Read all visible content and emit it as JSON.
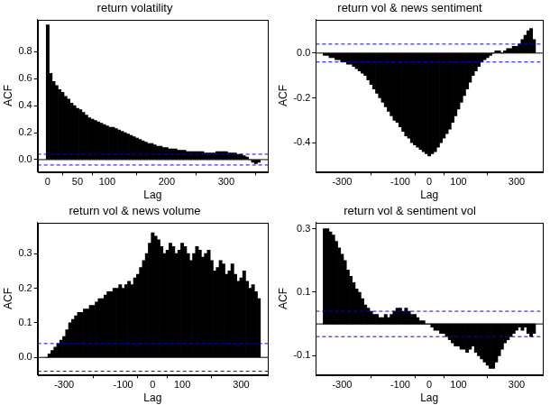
{
  "chart_data": [
    {
      "type": "bar",
      "title": "return volatility",
      "x_label": "Lag",
      "y_label": "ACF",
      "color": "#000000",
      "grid": false,
      "xlim": [
        -17,
        370
      ],
      "xticks": [
        0,
        50,
        100,
        200,
        300
      ],
      "ylim": [
        -0.09,
        1.04
      ],
      "yticks": [
        {
          "value": 0,
          "label": "0.0"
        },
        {
          "value": 0.2,
          "label": "0.2"
        },
        {
          "value": 0.4,
          "label": "0.4"
        },
        {
          "value": 0.6,
          "label": "0.6"
        },
        {
          "value": 0.8,
          "label": "0.8"
        }
      ],
      "confidence_bounds": [
        -0.04,
        0.04
      ],
      "x": [
        0,
        5,
        10,
        15,
        20,
        25,
        30,
        35,
        40,
        45,
        50,
        55,
        60,
        65,
        70,
        75,
        80,
        85,
        90,
        95,
        100,
        105,
        110,
        115,
        120,
        125,
        130,
        135,
        140,
        145,
        150,
        155,
        160,
        165,
        170,
        175,
        180,
        185,
        190,
        195,
        200,
        205,
        210,
        215,
        220,
        225,
        230,
        235,
        240,
        245,
        250,
        255,
        260,
        265,
        270,
        275,
        280,
        285,
        290,
        295,
        300,
        305,
        310,
        315,
        320,
        325,
        330,
        335,
        340,
        345,
        350,
        355
      ],
      "values": [
        1.0,
        0.64,
        0.58,
        0.55,
        0.52,
        0.5,
        0.47,
        0.45,
        0.42,
        0.4,
        0.38,
        0.37,
        0.35,
        0.33,
        0.31,
        0.3,
        0.29,
        0.28,
        0.27,
        0.26,
        0.25,
        0.24,
        0.24,
        0.23,
        0.22,
        0.21,
        0.2,
        0.19,
        0.18,
        0.17,
        0.16,
        0.15,
        0.14,
        0.13,
        0.12,
        0.12,
        0.11,
        0.1,
        0.1,
        0.09,
        0.09,
        0.08,
        0.08,
        0.08,
        0.07,
        0.07,
        0.07,
        0.06,
        0.06,
        0.06,
        0.06,
        0.06,
        0.06,
        0.05,
        0.05,
        0.05,
        0.05,
        0.06,
        0.06,
        0.06,
        0.06,
        0.05,
        0.05,
        0.05,
        0.04,
        0.04,
        0.03,
        0.02,
        0.0,
        -0.02,
        -0.03,
        -0.02
      ]
    },
    {
      "type": "bar",
      "title": "return vol & news sentiment",
      "x_label": "Lag",
      "y_label": "ACF",
      "color": "#000000",
      "grid": false,
      "xlim": [
        -390,
        390
      ],
      "xticks": [
        -300,
        -100,
        0,
        100,
        300
      ],
      "ylim": [
        -0.53,
        0.15
      ],
      "yticks": [
        {
          "value": -0.4,
          "label": "-0.4"
        },
        {
          "value": -0.2,
          "label": "-0.2"
        },
        {
          "value": 0,
          "label": "0.0"
        }
      ],
      "confidence_bounds": [
        -0.04,
        0.04
      ],
      "x": [
        -360,
        -350,
        -340,
        -330,
        -320,
        -310,
        -300,
        -290,
        -280,
        -270,
        -260,
        -250,
        -240,
        -230,
        -220,
        -210,
        -200,
        -190,
        -180,
        -170,
        -160,
        -150,
        -140,
        -130,
        -120,
        -110,
        -100,
        -90,
        -80,
        -70,
        -60,
        -50,
        -40,
        -30,
        -20,
        -10,
        0,
        10,
        20,
        30,
        40,
        50,
        60,
        70,
        80,
        90,
        100,
        110,
        120,
        130,
        140,
        150,
        160,
        170,
        180,
        190,
        200,
        210,
        220,
        230,
        240,
        250,
        260,
        270,
        280,
        290,
        300,
        310,
        320,
        330,
        340,
        350,
        360
      ],
      "values": [
        -0.01,
        -0.01,
        -0.02,
        -0.02,
        -0.03,
        -0.03,
        -0.04,
        -0.04,
        -0.05,
        -0.05,
        -0.06,
        -0.07,
        -0.08,
        -0.09,
        -0.1,
        -0.12,
        -0.14,
        -0.16,
        -0.18,
        -0.2,
        -0.22,
        -0.24,
        -0.26,
        -0.28,
        -0.3,
        -0.31,
        -0.33,
        -0.35,
        -0.37,
        -0.38,
        -0.4,
        -0.41,
        -0.42,
        -0.43,
        -0.44,
        -0.45,
        -0.46,
        -0.45,
        -0.44,
        -0.42,
        -0.4,
        -0.38,
        -0.36,
        -0.34,
        -0.31,
        -0.28,
        -0.25,
        -0.22,
        -0.19,
        -0.16,
        -0.13,
        -0.1,
        -0.08,
        -0.06,
        -0.04,
        -0.03,
        -0.02,
        -0.01,
        0.0,
        0.01,
        0.01,
        0.0,
        0.01,
        0.02,
        0.02,
        0.03,
        0.03,
        0.04,
        0.06,
        0.08,
        0.1,
        0.11,
        0.06
      ]
    },
    {
      "type": "bar",
      "title": "return vol & news volume",
      "x_label": "Lag",
      "y_label": "ACF",
      "color": "#000000",
      "grid": false,
      "xlim": [
        -390,
        390
      ],
      "xticks": [
        -300,
        -100,
        0,
        100,
        300
      ],
      "ylim": [
        -0.05,
        0.39
      ],
      "yticks": [
        {
          "value": 0,
          "label": "0.0"
        },
        {
          "value": 0.1,
          "label": "0.1"
        },
        {
          "value": 0.2,
          "label": "0.2"
        },
        {
          "value": 0.3,
          "label": "0.3"
        }
      ],
      "confidence_bounds": [
        -0.04,
        0.04
      ],
      "x": [
        -360,
        -350,
        -340,
        -330,
        -320,
        -310,
        -300,
        -290,
        -280,
        -270,
        -260,
        -250,
        -240,
        -230,
        -220,
        -210,
        -200,
        -190,
        -180,
        -170,
        -160,
        -150,
        -140,
        -130,
        -120,
        -110,
        -100,
        -90,
        -80,
        -70,
        -60,
        -50,
        -40,
        -30,
        -20,
        -10,
        0,
        10,
        20,
        30,
        40,
        50,
        60,
        70,
        80,
        90,
        100,
        110,
        120,
        130,
        140,
        150,
        160,
        170,
        180,
        190,
        200,
        210,
        220,
        230,
        240,
        250,
        260,
        270,
        280,
        290,
        300,
        310,
        320,
        330,
        340,
        350,
        360
      ],
      "values": [
        0.0,
        0.01,
        0.02,
        0.03,
        0.04,
        0.05,
        0.06,
        0.08,
        0.1,
        0.11,
        0.12,
        0.13,
        0.13,
        0.14,
        0.14,
        0.15,
        0.15,
        0.16,
        0.17,
        0.17,
        0.18,
        0.19,
        0.19,
        0.2,
        0.2,
        0.21,
        0.2,
        0.21,
        0.22,
        0.21,
        0.23,
        0.24,
        0.26,
        0.28,
        0.3,
        0.33,
        0.36,
        0.35,
        0.34,
        0.32,
        0.3,
        0.31,
        0.33,
        0.32,
        0.3,
        0.31,
        0.33,
        0.32,
        0.3,
        0.28,
        0.3,
        0.32,
        0.31,
        0.29,
        0.3,
        0.31,
        0.28,
        0.25,
        0.26,
        0.28,
        0.27,
        0.24,
        0.25,
        0.27,
        0.24,
        0.22,
        0.23,
        0.25,
        0.22,
        0.2,
        0.21,
        0.19,
        0.17
      ]
    },
    {
      "type": "bar",
      "title": "return vol & sentiment vol",
      "x_label": "Lag",
      "y_label": "ACF",
      "color": "#000000",
      "grid": false,
      "xlim": [
        -390,
        390
      ],
      "xticks": [
        -300,
        -100,
        0,
        100,
        300
      ],
      "ylim": [
        -0.16,
        0.32
      ],
      "yticks": [
        {
          "value": -0.1,
          "label": "-0.1"
        },
        {
          "value": 0.1,
          "label": "0.1"
        },
        {
          "value": 0.3,
          "label": "0.3"
        }
      ],
      "confidence_bounds": [
        -0.04,
        0.04
      ],
      "x": [
        -360,
        -350,
        -340,
        -330,
        -320,
        -310,
        -300,
        -290,
        -280,
        -270,
        -260,
        -250,
        -240,
        -230,
        -220,
        -210,
        -200,
        -190,
        -180,
        -170,
        -160,
        -150,
        -140,
        -130,
        -120,
        -110,
        -100,
        -90,
        -80,
        -70,
        -60,
        -50,
        -40,
        -30,
        -20,
        -10,
        0,
        10,
        20,
        30,
        40,
        50,
        60,
        70,
        80,
        90,
        100,
        110,
        120,
        130,
        140,
        150,
        160,
        170,
        180,
        190,
        200,
        210,
        220,
        230,
        240,
        250,
        260,
        270,
        280,
        290,
        300,
        310,
        320,
        330,
        340,
        350,
        360
      ],
      "values": [
        0.3,
        0.3,
        0.29,
        0.28,
        0.26,
        0.24,
        0.22,
        0.2,
        0.17,
        0.15,
        0.13,
        0.11,
        0.1,
        0.08,
        0.06,
        0.05,
        0.04,
        0.03,
        0.03,
        0.02,
        0.02,
        0.03,
        0.02,
        0.03,
        0.04,
        0.05,
        0.05,
        0.04,
        0.05,
        0.04,
        0.03,
        0.03,
        0.02,
        0.01,
        0.01,
        0.0,
        0.0,
        -0.01,
        -0.02,
        -0.02,
        -0.03,
        -0.03,
        -0.04,
        -0.05,
        -0.06,
        -0.07,
        -0.07,
        -0.08,
        -0.08,
        -0.09,
        -0.08,
        -0.07,
        -0.09,
        -0.1,
        -0.11,
        -0.12,
        -0.13,
        -0.14,
        -0.14,
        -0.12,
        -0.1,
        -0.08,
        -0.06,
        -0.05,
        -0.04,
        -0.03,
        -0.02,
        -0.01,
        -0.02,
        -0.01,
        -0.03,
        -0.04,
        -0.03
      ]
    }
  ]
}
